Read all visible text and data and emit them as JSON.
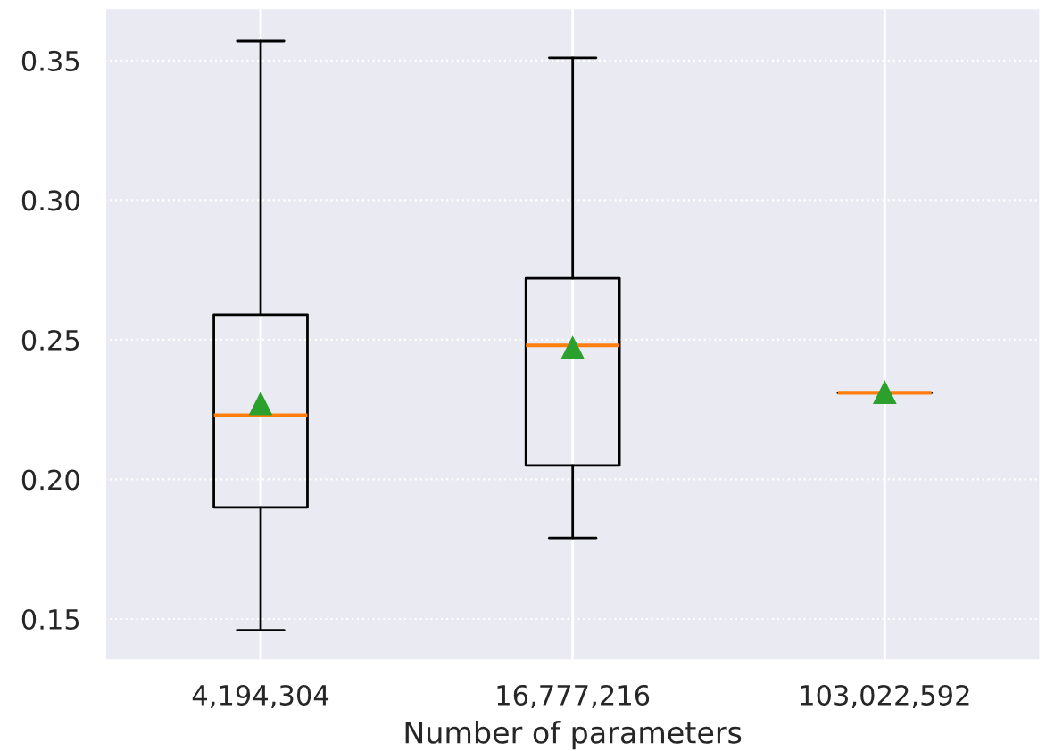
{
  "chart_data": {
    "type": "box",
    "xlabel": "Number of parameters",
    "categories": [
      "4,194,304",
      "16,777,216",
      "103,022,592"
    ],
    "boxes": [
      {
        "low": 0.146,
        "q1": 0.19,
        "median": 0.223,
        "q3": 0.259,
        "high": 0.357,
        "mean": 0.227
      },
      {
        "low": 0.179,
        "q1": 0.205,
        "median": 0.248,
        "q3": 0.272,
        "high": 0.351,
        "mean": 0.247
      },
      {
        "low": 0.231,
        "q1": 0.231,
        "median": 0.231,
        "q3": 0.231,
        "high": 0.231,
        "mean": 0.231
      }
    ],
    "ylim": [
      0.135,
      0.369
    ],
    "yticks": [
      {
        "value": 0.15,
        "label": "0.15"
      },
      {
        "value": 0.2,
        "label": "0.20"
      },
      {
        "value": 0.25,
        "label": "0.25"
      },
      {
        "value": 0.3,
        "label": "0.30"
      },
      {
        "value": 0.35,
        "label": "0.35"
      }
    ],
    "grid": true,
    "color": "#000000",
    "marker": "triangle"
  }
}
